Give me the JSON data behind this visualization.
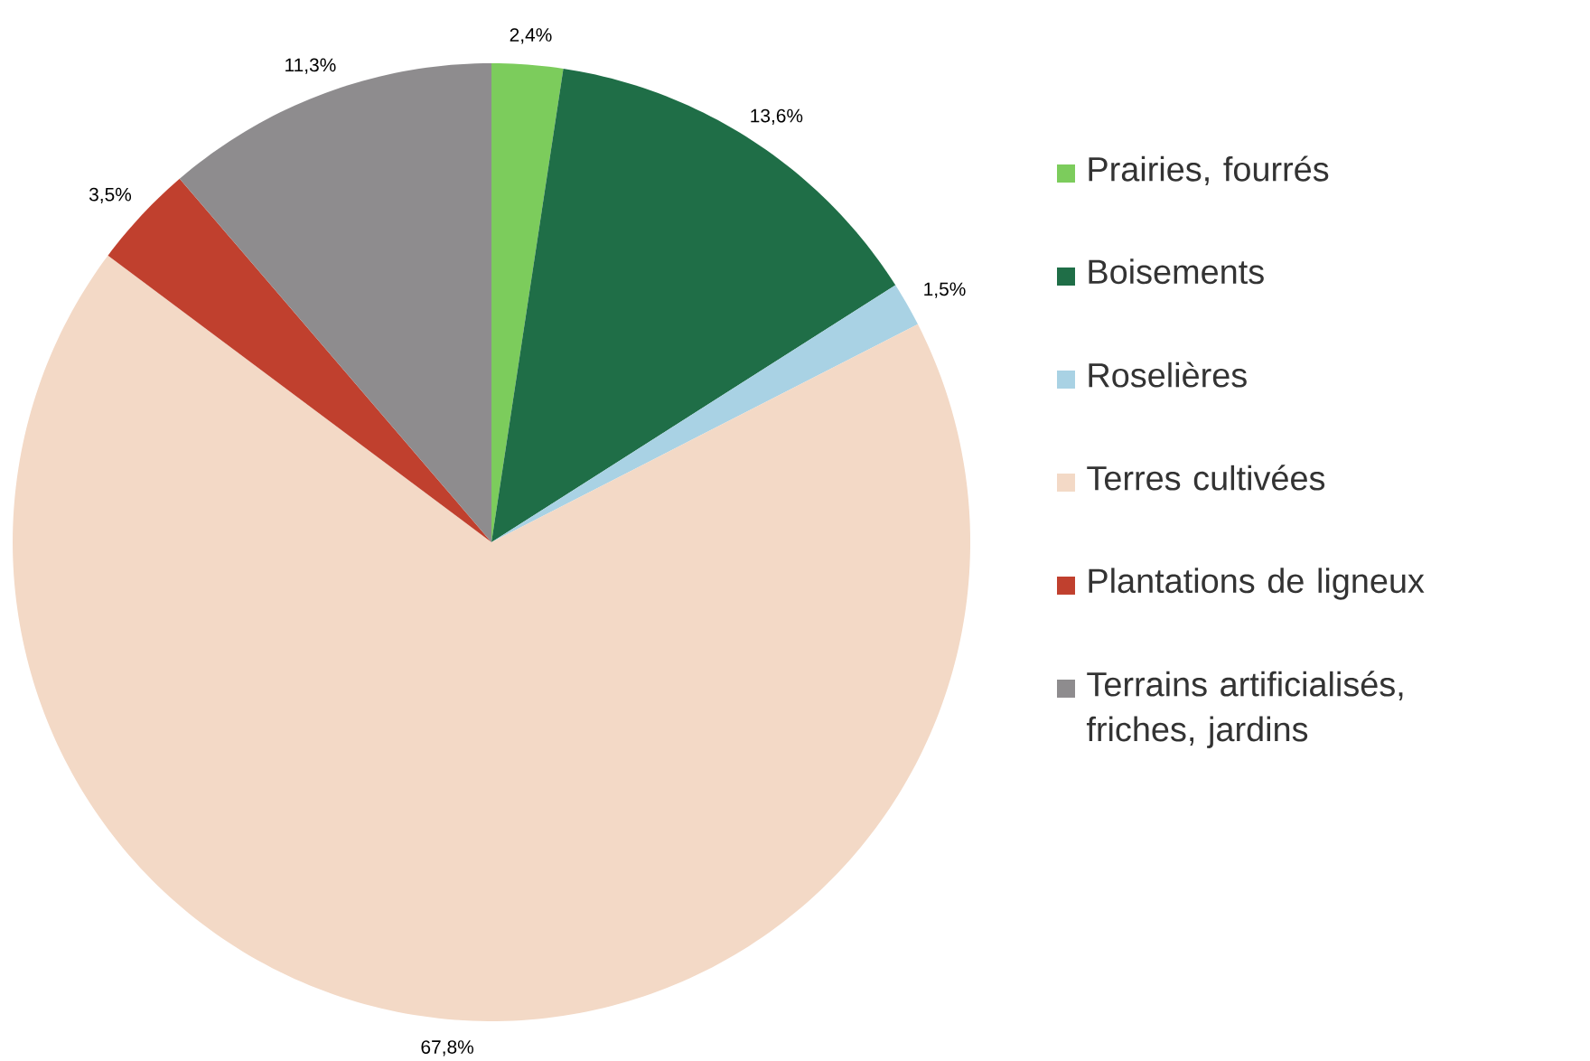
{
  "chart_data": {
    "type": "pie",
    "categories": [
      "Prairies, fourrés",
      "Boisements",
      "Roselières",
      "Terres cultivées",
      "Plantations de ligneux",
      "Terrains artificialisés, friches, jardins"
    ],
    "values": [
      2.4,
      13.6,
      1.5,
      67.8,
      3.5,
      11.3
    ],
    "colors": [
      "#7ccc5c",
      "#1f6e47",
      "#a9d2e4",
      "#f3d9c6",
      "#c0402e",
      "#8e8c8e"
    ],
    "value_labels": [
      "2,4%",
      "13,6%",
      "1,5%",
      "67,8%",
      "3,5%",
      "11,3%"
    ],
    "legend": "right"
  }
}
